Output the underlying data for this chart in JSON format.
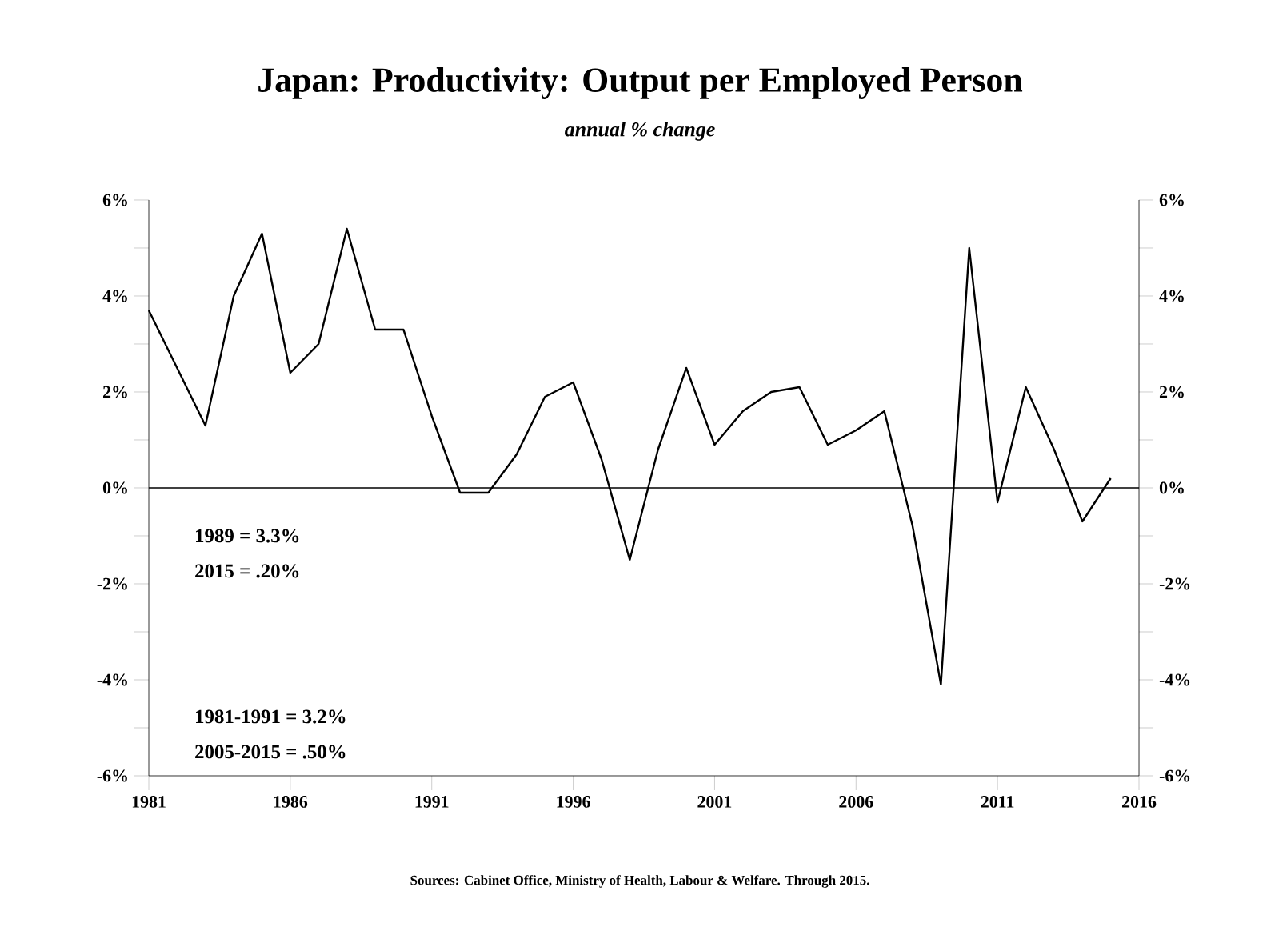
{
  "chart_data": {
    "type": "line",
    "title": "Japan: Productivity: Output per Employed Person",
    "subtitle": "annual % change",
    "x": [
      1981,
      1982,
      1983,
      1984,
      1985,
      1986,
      1987,
      1988,
      1989,
      1990,
      1991,
      1992,
      1993,
      1994,
      1995,
      1996,
      1997,
      1998,
      1999,
      2000,
      2001,
      2002,
      2003,
      2004,
      2005,
      2006,
      2007,
      2008,
      2009,
      2010,
      2011,
      2012,
      2013,
      2014,
      2015
    ],
    "series": [
      {
        "color": "#000000",
        "values": [
          3.7,
          2.5,
          1.3,
          4.0,
          5.3,
          2.4,
          3.0,
          5.4,
          3.3,
          3.3,
          1.5,
          -0.1,
          -0.1,
          0.7,
          1.9,
          2.2,
          0.6,
          -1.5,
          0.8,
          2.5,
          0.9,
          1.6,
          2.0,
          2.1,
          0.9,
          1.2,
          1.6,
          -0.8,
          -4.1,
          5.0,
          -0.3,
          2.1,
          0.8,
          -0.7,
          0.2
        ]
      }
    ],
    "xlim": [
      1981,
      2016
    ],
    "xticks": [
      1981,
      1986,
      1991,
      1996,
      2001,
      2006,
      2011,
      2016
    ],
    "ylim": [
      -6,
      6
    ],
    "yticks": [
      {
        "value": -6,
        "label": "-6%"
      },
      {
        "value": -5,
        "label": null
      },
      {
        "value": -4,
        "label": "-4%"
      },
      {
        "value": -3,
        "label": null
      },
      {
        "value": -2,
        "label": "-2%"
      },
      {
        "value": -1,
        "label": null
      },
      {
        "value": 0,
        "label": "0%"
      },
      {
        "value": 1,
        "label": null
      },
      {
        "value": 2,
        "label": "2%"
      },
      {
        "value": 3,
        "label": null
      },
      {
        "value": 4,
        "label": "4%"
      },
      {
        "value": 5,
        "label": null
      },
      {
        "value": 6,
        "label": "6%"
      }
    ],
    "y2lim": [
      -6,
      6
    ],
    "y2ticks": [
      {
        "value": -6,
        "label": "-6%"
      },
      {
        "value": -5,
        "label": null
      },
      {
        "value": -4,
        "label": "-4%"
      },
      {
        "value": -3,
        "label": null
      },
      {
        "value": -2,
        "label": "-2%"
      },
      {
        "value": -1,
        "label": null
      },
      {
        "value": 0,
        "label": "0%"
      },
      {
        "value": 1,
        "label": null
      },
      {
        "value": 2,
        "label": "2%"
      },
      {
        "value": 3,
        "label": null
      },
      {
        "value": 4,
        "label": "4%"
      },
      {
        "value": 5,
        "label": null
      },
      {
        "value": 6,
        "label": "6%"
      }
    ],
    "ref_lines": [
      {
        "axis": "y",
        "value": 0,
        "color": "#000000"
      }
    ],
    "annotations": [
      "1989 = 3.3%",
      "2015 = .20%",
      "1981-1991 = 3.2%",
      "2005-2015 = .50%",
      "Sources:  Cabinet Office, Ministry of Health, Labour & Welfare.  Through  2015."
    ]
  }
}
